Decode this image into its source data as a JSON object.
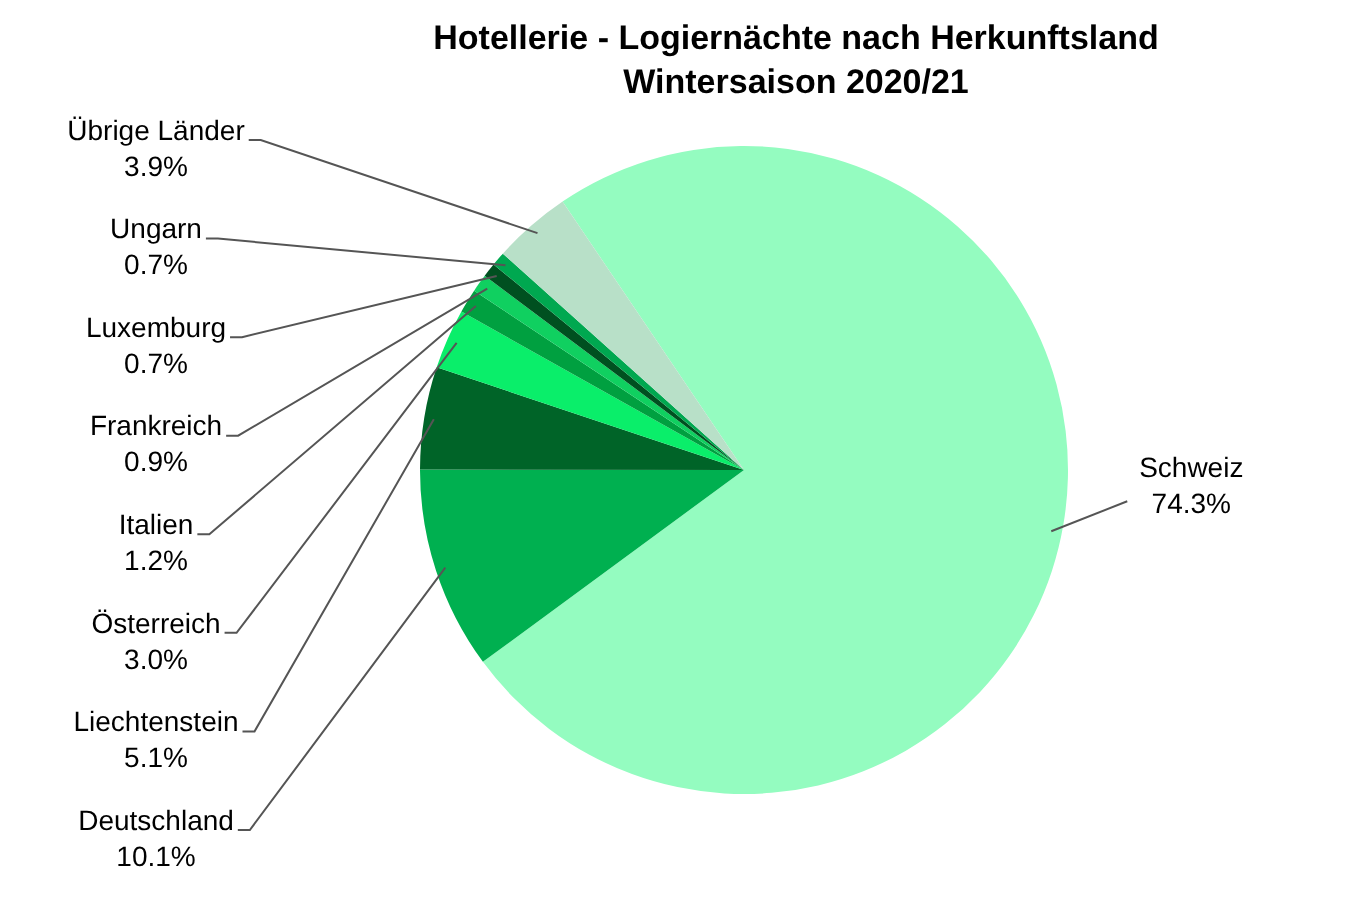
{
  "chart_data": {
    "type": "pie",
    "title": "Hotellerie - Logiernächte nach Herkunftsland\nWintersaison 2020/21",
    "categories": [
      "Schweiz",
      "Deutschland",
      "Liechtenstein",
      "Österreich",
      "Italien",
      "Frankreich",
      "Luxemburg",
      "Ungarn",
      "Übrige Länder"
    ],
    "values": [
      74.3,
      10.1,
      5.1,
      3.0,
      1.2,
      0.9,
      0.7,
      0.7,
      3.9
    ],
    "colors": [
      "#94fcc0",
      "#00b050",
      "#006428",
      "#0aee6a",
      "#00a040",
      "#10d060",
      "#005020",
      "#00a850",
      "#b8e0c8"
    ],
    "value_labels": [
      "74.3%",
      "10.1%",
      "5.1%",
      "3.0%",
      "1.2%",
      "0.9%",
      "0.7%",
      "0.7%",
      "3.9%"
    ],
    "legend": false
  }
}
